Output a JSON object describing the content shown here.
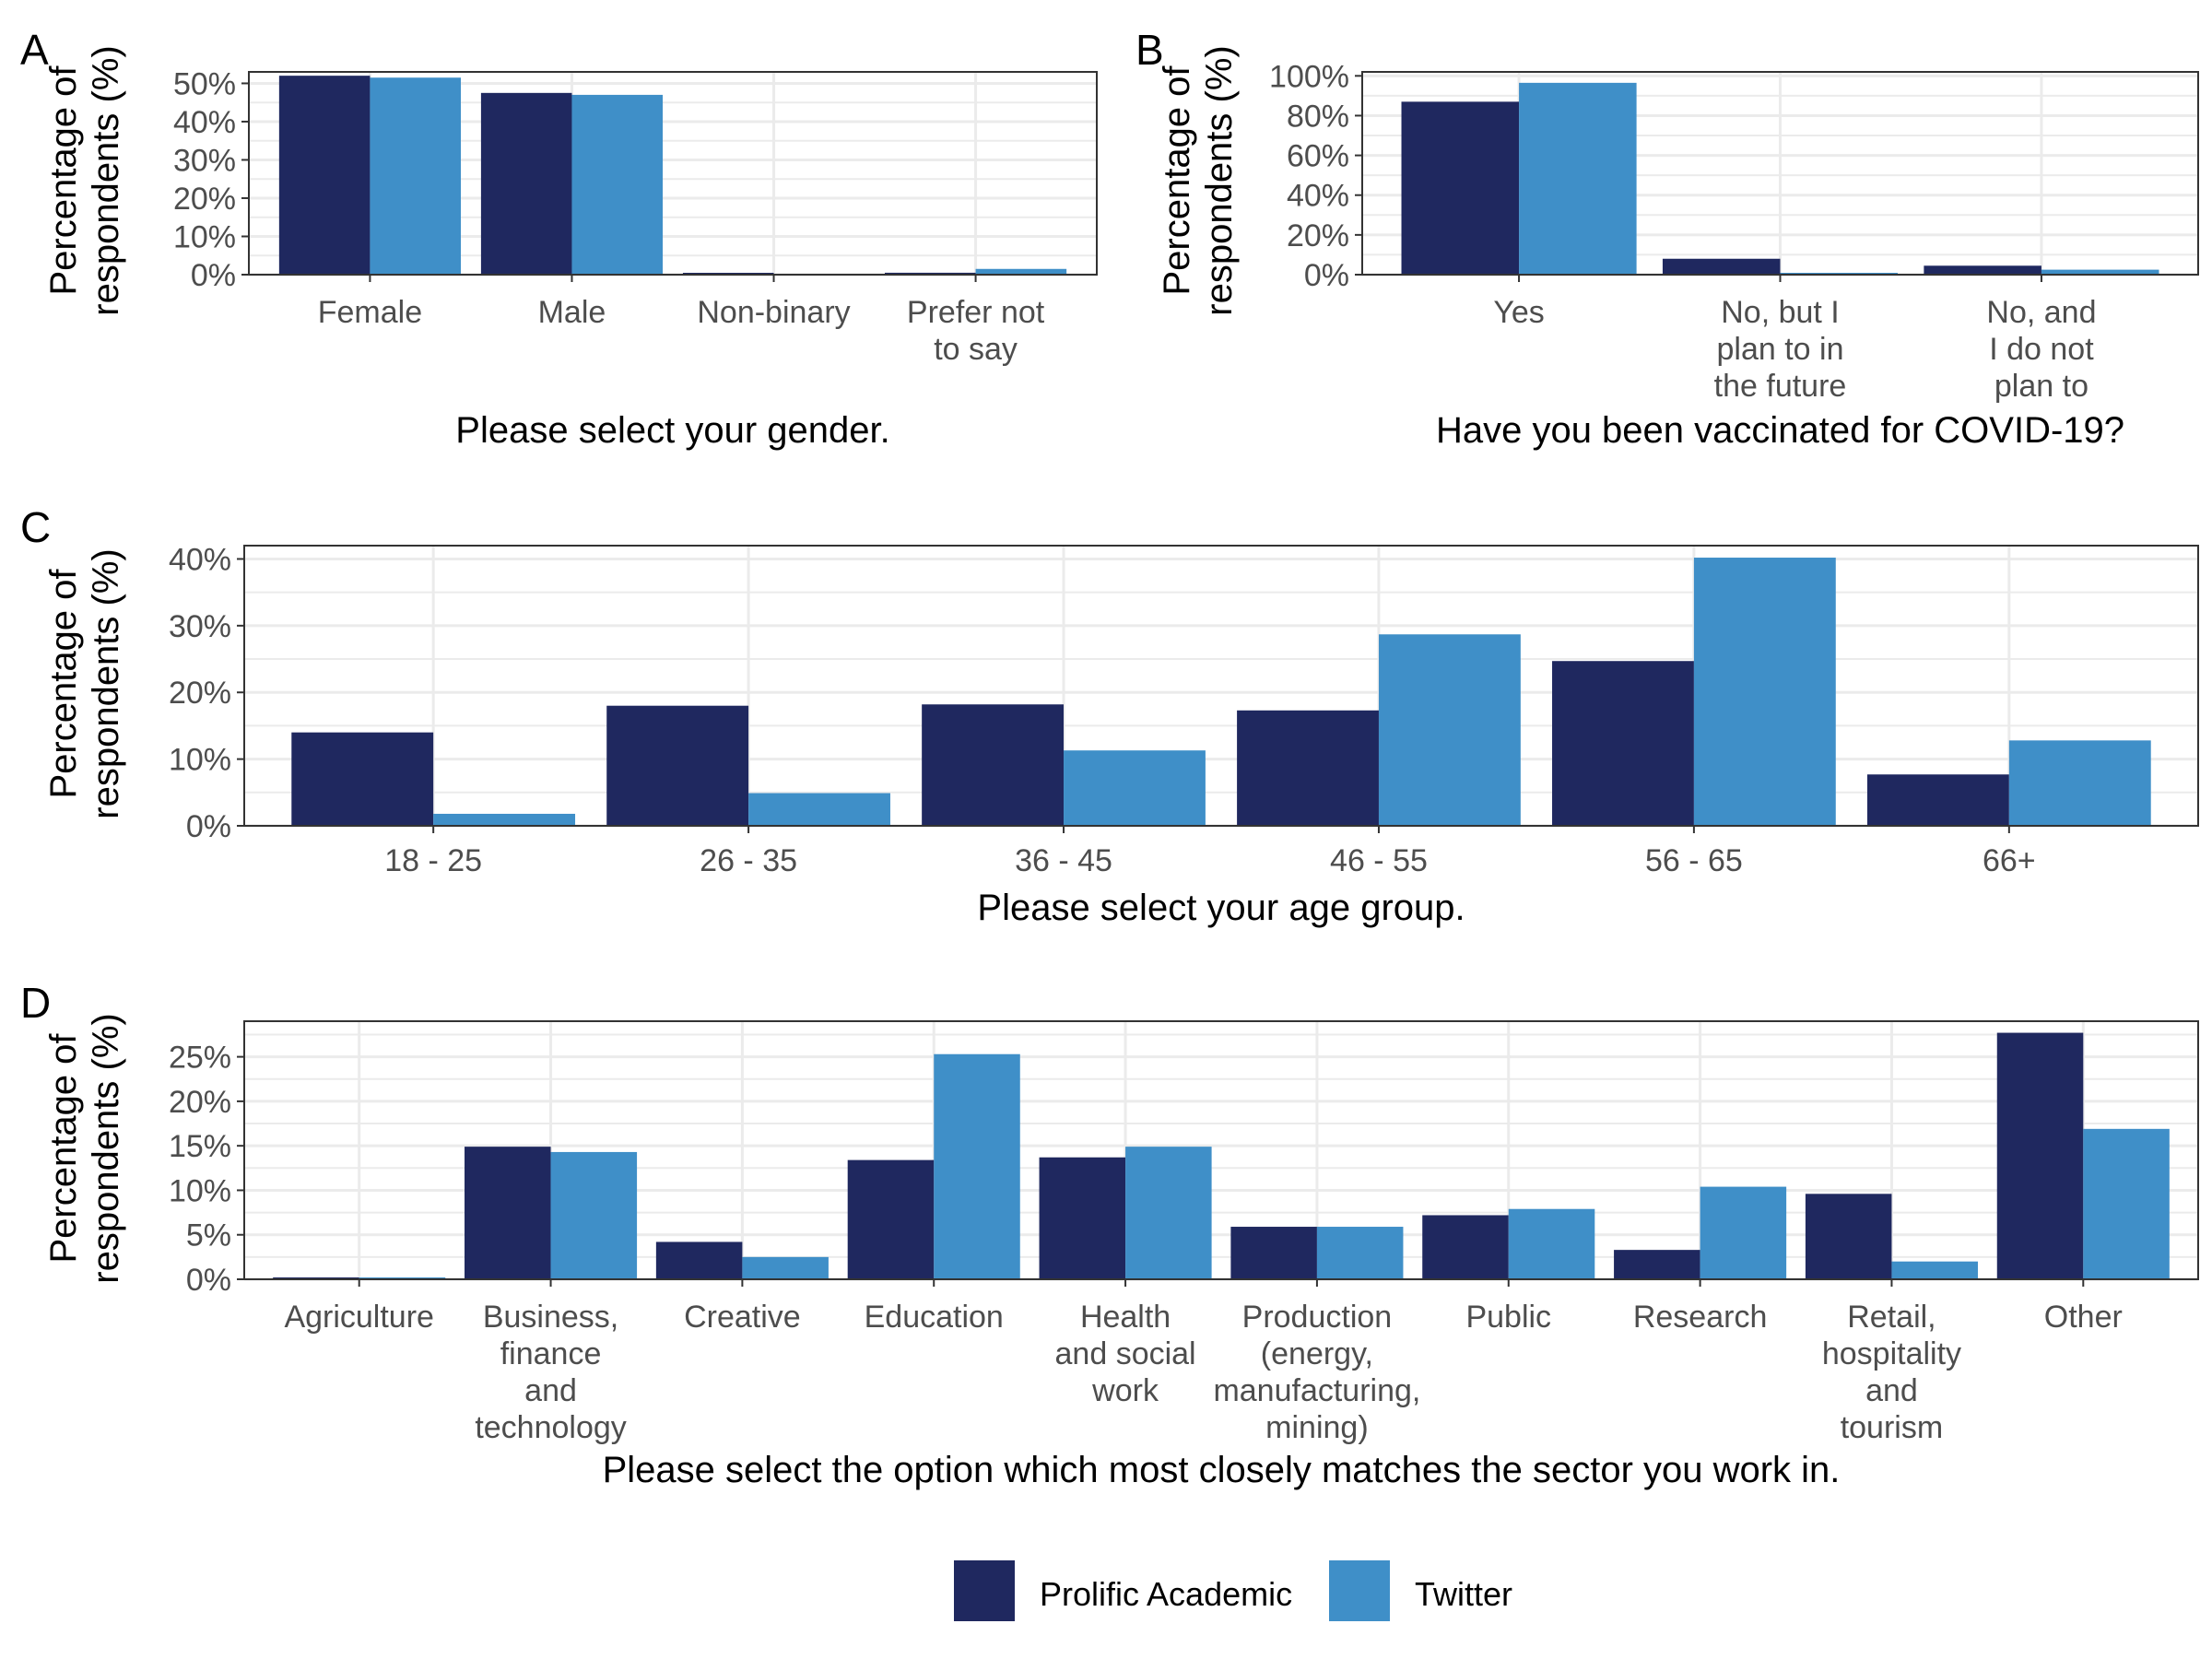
{
  "legend": {
    "position": "bottom",
    "items": [
      {
        "label": "Prolific Academic",
        "color": "#1f285f"
      },
      {
        "label": "Twitter",
        "color": "#3f8fc8"
      }
    ]
  },
  "colors": {
    "prolific": "#1f285f",
    "twitter": "#3f8fc8",
    "grid": "#ebebeb",
    "axis_text": "#4d4d4d"
  },
  "chart_data": [
    {
      "panel_label": "A",
      "type": "bar",
      "xlabel": "Please select your gender.",
      "ylabel": "Percentage of respondents (%)",
      "ylim": [
        0,
        0.53
      ],
      "yticks": [
        0,
        0.1,
        0.2,
        0.3,
        0.4,
        0.5
      ],
      "ytick_labels": [
        "0%",
        "10%",
        "20%",
        "30%",
        "40%",
        "50%"
      ],
      "grid": true,
      "categories": [
        "Female",
        "Male",
        "Non-binary",
        "Prefer not to say"
      ],
      "category_lines": [
        [
          "Female"
        ],
        [
          "Male"
        ],
        [
          "Non-binary"
        ],
        [
          "Prefer not",
          "to say"
        ]
      ],
      "series": [
        {
          "name": "Prolific Academic",
          "values": [
            0.52,
            0.475,
            0.002,
            0.005
          ]
        },
        {
          "name": "Twitter",
          "values": [
            0.515,
            0.47,
            0.0,
            0.015
          ]
        }
      ]
    },
    {
      "panel_label": "B",
      "type": "bar",
      "xlabel": "Have you been vaccinated for COVID-19?",
      "ylabel": "Percentage of respondents (%)",
      "ylim": [
        0,
        1.02
      ],
      "yticks": [
        0,
        0.2,
        0.4,
        0.6,
        0.8,
        1.0
      ],
      "ytick_labels": [
        "0%",
        "20%",
        "40%",
        "60%",
        "80%",
        "100%"
      ],
      "grid": true,
      "categories": [
        "Yes",
        "No, but I plan to in the future",
        "No, and I do not plan to"
      ],
      "category_lines": [
        [
          "Yes"
        ],
        [
          "No, but I",
          "plan to in",
          "the future"
        ],
        [
          "No, and",
          "I do not",
          "plan to"
        ]
      ],
      "series": [
        {
          "name": "Prolific Academic",
          "values": [
            0.87,
            0.08,
            0.045
          ]
        },
        {
          "name": "Twitter",
          "values": [
            0.965,
            0.005,
            0.025
          ]
        }
      ]
    },
    {
      "panel_label": "C",
      "type": "bar",
      "xlabel": "Please select your age group.",
      "ylabel": "Percentage of respondents (%)",
      "ylim": [
        0,
        0.42
      ],
      "yticks": [
        0,
        0.1,
        0.2,
        0.3,
        0.4
      ],
      "ytick_labels": [
        "0%",
        "10%",
        "20%",
        "30%",
        "40%"
      ],
      "grid": true,
      "categories": [
        "18 - 25",
        "26 - 35",
        "36 - 45",
        "46 - 55",
        "56 - 65",
        "66+"
      ],
      "category_lines": [
        [
          "18 - 25"
        ],
        [
          "26 - 35"
        ],
        [
          "36 - 45"
        ],
        [
          "46 - 55"
        ],
        [
          "56 - 65"
        ],
        [
          "66+"
        ]
      ],
      "series": [
        {
          "name": "Prolific Academic",
          "values": [
            0.14,
            0.18,
            0.182,
            0.173,
            0.247,
            0.077
          ]
        },
        {
          "name": "Twitter",
          "values": [
            0.018,
            0.049,
            0.113,
            0.287,
            0.402,
            0.128
          ]
        }
      ]
    },
    {
      "panel_label": "D",
      "type": "bar",
      "xlabel": "Please select the option which most closely matches the sector you work in.",
      "ylabel": "Percentage of respondents (%)",
      "ylim": [
        0,
        0.29
      ],
      "yticks": [
        0,
        0.05,
        0.1,
        0.15,
        0.2,
        0.25
      ],
      "ytick_labels": [
        "0%",
        "5%",
        "10%",
        "15%",
        "20%",
        "25%"
      ],
      "grid": true,
      "categories": [
        "Agriculture",
        "Business, finance and technology",
        "Creative",
        "Education",
        "Health and social work",
        "Production (energy, manufacturing, mining)",
        "Public",
        "Research",
        "Retail, hospitality and tourism",
        "Other"
      ],
      "category_lines": [
        [
          "Agriculture"
        ],
        [
          "Business,",
          "finance",
          "and",
          "technology"
        ],
        [
          "Creative"
        ],
        [
          "Education"
        ],
        [
          "Health",
          "and social",
          "work"
        ],
        [
          "Production",
          "(energy,",
          "manufacturing,",
          "mining)"
        ],
        [
          "Public"
        ],
        [
          "Research"
        ],
        [
          "Retail,",
          "hospitality",
          "and",
          "tourism"
        ],
        [
          "Other"
        ]
      ],
      "series": [
        {
          "name": "Prolific Academic",
          "values": [
            0.002,
            0.149,
            0.042,
            0.134,
            0.137,
            0.059,
            0.072,
            0.033,
            0.096,
            0.277
          ]
        },
        {
          "name": "Twitter",
          "values": [
            0.001,
            0.143,
            0.025,
            0.253,
            0.149,
            0.059,
            0.079,
            0.104,
            0.02,
            0.169
          ]
        }
      ]
    }
  ]
}
